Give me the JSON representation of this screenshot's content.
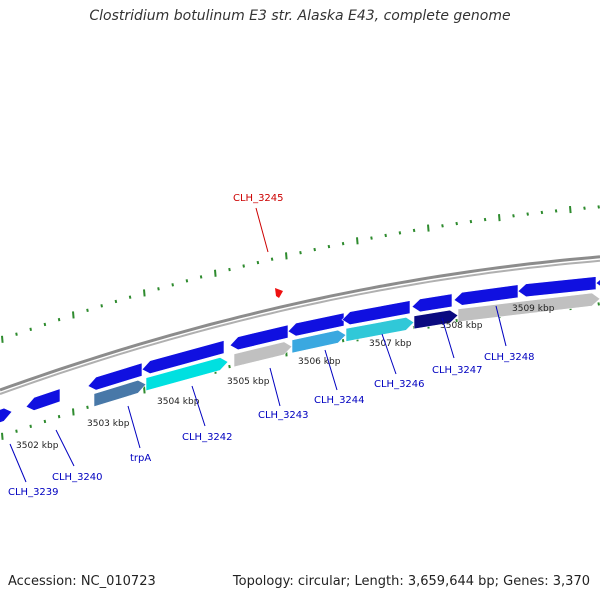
{
  "title": "Clostridium botulinum E3 str. Alaska E43, complete genome",
  "accession_text": "Accession: NC_010723",
  "summary_text": "Topology: circular; Length: 3,659,644 bp; Genes: 3,370",
  "colors": {
    "backbone": "#8c8c8c",
    "tick": "#2e8b2e",
    "gene_blue": "#1010e0",
    "gene_cyan": "#00e0e0",
    "gene_lightblue": "#3aa8e0",
    "gene_grey": "#c0c0c0",
    "gene_navy": "#0a0a80",
    "gene_steel": "#4878a8",
    "label_blue": "#0000c0",
    "label_red": "#cc0000",
    "marker_red": "#ee1111"
  },
  "kbp_labels": [
    "3502 kbp",
    "3503 kbp",
    "3504 kbp",
    "3505 kbp",
    "3506 kbp",
    "3507 kbp",
    "3508 kbp",
    "3509 kbp"
  ],
  "gene_labels": [
    {
      "name": "CLH_3239",
      "color": "label_blue"
    },
    {
      "name": "CLH_3240",
      "color": "label_blue"
    },
    {
      "name": "trpA",
      "color": "label_blue"
    },
    {
      "name": "CLH_3242",
      "color": "label_blue"
    },
    {
      "name": "CLH_3243",
      "color": "label_blue"
    },
    {
      "name": "CLH_3244",
      "color": "label_blue"
    },
    {
      "name": "CLH_3246",
      "color": "label_blue"
    },
    {
      "name": "CLH_3247",
      "color": "label_blue"
    },
    {
      "name": "CLH_3248",
      "color": "label_blue"
    },
    {
      "name": "CLH_3245",
      "color": "label_red"
    }
  ]
}
